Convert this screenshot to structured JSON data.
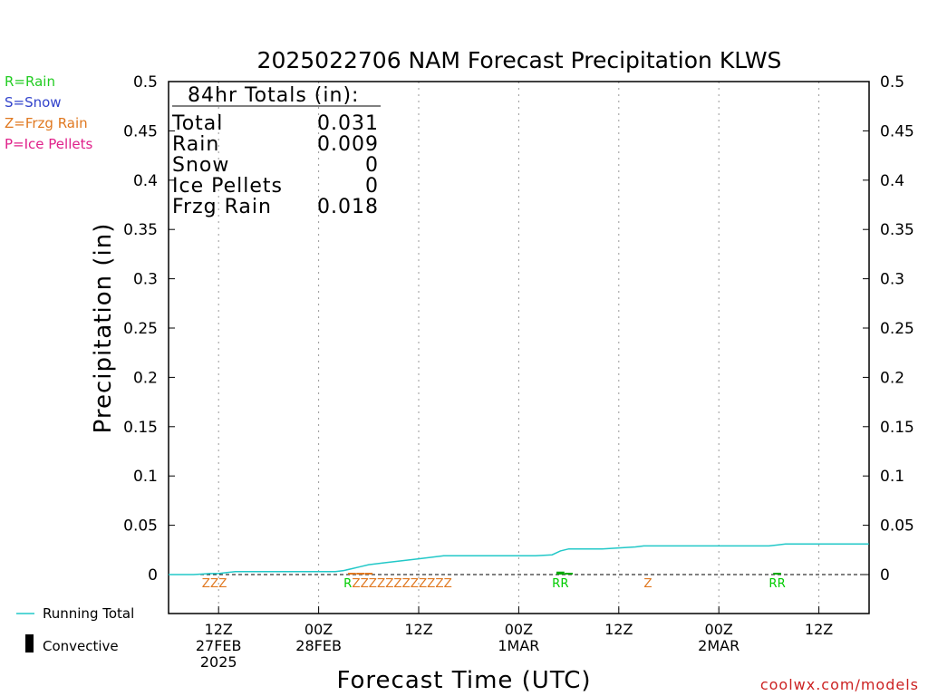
{
  "chart_data": {
    "type": "line",
    "title": "2025022706 NAM Forecast Precipitation KLWS",
    "xlabel": "Forecast Time (UTC)",
    "ylabel": "Precipitation (in)",
    "ylim": [
      0,
      0.5
    ],
    "xlim": [
      0,
      84
    ],
    "y_ticks": [
      0,
      0.05,
      0.1,
      0.15,
      0.2,
      0.25,
      0.3,
      0.35,
      0.4,
      0.45,
      0.5
    ],
    "y_tick_labels": [
      "0",
      "0.05",
      "0.1",
      "0.15",
      "0.2",
      "0.25",
      "0.3",
      "0.35",
      "0.4",
      "0.45",
      "0.5"
    ],
    "x_ticks": [
      {
        "hour": 6,
        "l1": "12Z",
        "l2": "27FEB",
        "l3": "2025"
      },
      {
        "hour": 18,
        "l1": "00Z",
        "l2": "28FEB",
        "l3": ""
      },
      {
        "hour": 30,
        "l1": "12Z",
        "l2": "",
        "l3": ""
      },
      {
        "hour": 42,
        "l1": "00Z",
        "l2": "1MAR",
        "l3": ""
      },
      {
        "hour": 54,
        "l1": "12Z",
        "l2": "",
        "l3": ""
      },
      {
        "hour": 66,
        "l1": "00Z",
        "l2": "2MAR",
        "l3": ""
      },
      {
        "hour": 78,
        "l1": "12Z",
        "l2": "",
        "l3": ""
      }
    ],
    "grid": "vertical dotted",
    "series": [
      {
        "name": "Running Total",
        "color": "#22c8c8",
        "x": [
          0,
          3,
          5,
          6,
          7,
          8,
          12,
          16,
          18,
          20,
          21,
          22,
          23,
          24,
          26,
          28,
          30,
          32,
          33,
          34,
          36,
          40,
          44,
          46,
          47,
          48,
          50,
          52,
          54,
          56,
          57,
          60,
          64,
          68,
          72,
          73,
          74,
          76,
          78,
          80,
          84
        ],
        "values": [
          0,
          0,
          0.001,
          0.001,
          0.002,
          0.003,
          0.003,
          0.003,
          0.003,
          0.003,
          0.004,
          0.006,
          0.008,
          0.01,
          0.012,
          0.014,
          0.016,
          0.018,
          0.019,
          0.019,
          0.019,
          0.019,
          0.019,
          0.02,
          0.024,
          0.026,
          0.026,
          0.026,
          0.027,
          0.028,
          0.029,
          0.029,
          0.029,
          0.029,
          0.029,
          0.03,
          0.031,
          0.031,
          0.031,
          0.031,
          0.031
        ]
      }
    ],
    "bars": [
      {
        "x": 22,
        "value": 0.0008,
        "color": "#e07820"
      },
      {
        "x": 23,
        "value": 0.0008,
        "color": "#e07820"
      },
      {
        "x": 24,
        "value": 0.0008,
        "color": "#e07820"
      },
      {
        "x": 47,
        "value": 0.003,
        "color": "#00aa00"
      },
      {
        "x": 48,
        "value": 0.001,
        "color": "#00aa00"
      },
      {
        "x": 73,
        "value": 0.001,
        "color": "#00aa00"
      }
    ],
    "ptype_labels": [
      {
        "x_start": 4,
        "x_end": 7,
        "text": "ZZZ",
        "color": "#e07820"
      },
      {
        "x_start": 21,
        "x_end": 22,
        "text": "R",
        "color": "#00cc00"
      },
      {
        "x_start": 22,
        "x_end": 34,
        "text": "ZZZZZZZZZZZZ",
        "color": "#e07820"
      },
      {
        "x_start": 46,
        "x_end": 48,
        "text": "RR",
        "color": "#00cc00"
      },
      {
        "x_start": 57,
        "x_end": 58,
        "text": "Z",
        "color": "#e07820"
      },
      {
        "x_start": 72,
        "x_end": 74,
        "text": "RR",
        "color": "#00cc00"
      }
    ],
    "totals_box": {
      "heading": "84hr Totals (in):",
      "rows": [
        {
          "label": "Total",
          "value": "0.031"
        },
        {
          "label": "Rain",
          "value": "0.009"
        },
        {
          "label": "Snow",
          "value": "0"
        },
        {
          "label": "Ice Pellets",
          "value": "0"
        },
        {
          "label": "Frzg Rain",
          "value": "0.018"
        }
      ]
    },
    "ptype_key": [
      {
        "text": "R=Rain",
        "color": "#22cc22"
      },
      {
        "text": "S=Snow",
        "color": "#3344cc"
      },
      {
        "text": "Z=Frzg Rain",
        "color": "#e07820"
      },
      {
        "text": "P=Ice Pellets",
        "color": "#e0208a"
      }
    ],
    "bottom_legend": [
      {
        "text": "Running Total",
        "symbol": "line",
        "color": "#22c8c8"
      },
      {
        "text": "Convective",
        "symbol": "bar",
        "color": "#000000"
      }
    ],
    "credit": "coolwx.com/models"
  }
}
